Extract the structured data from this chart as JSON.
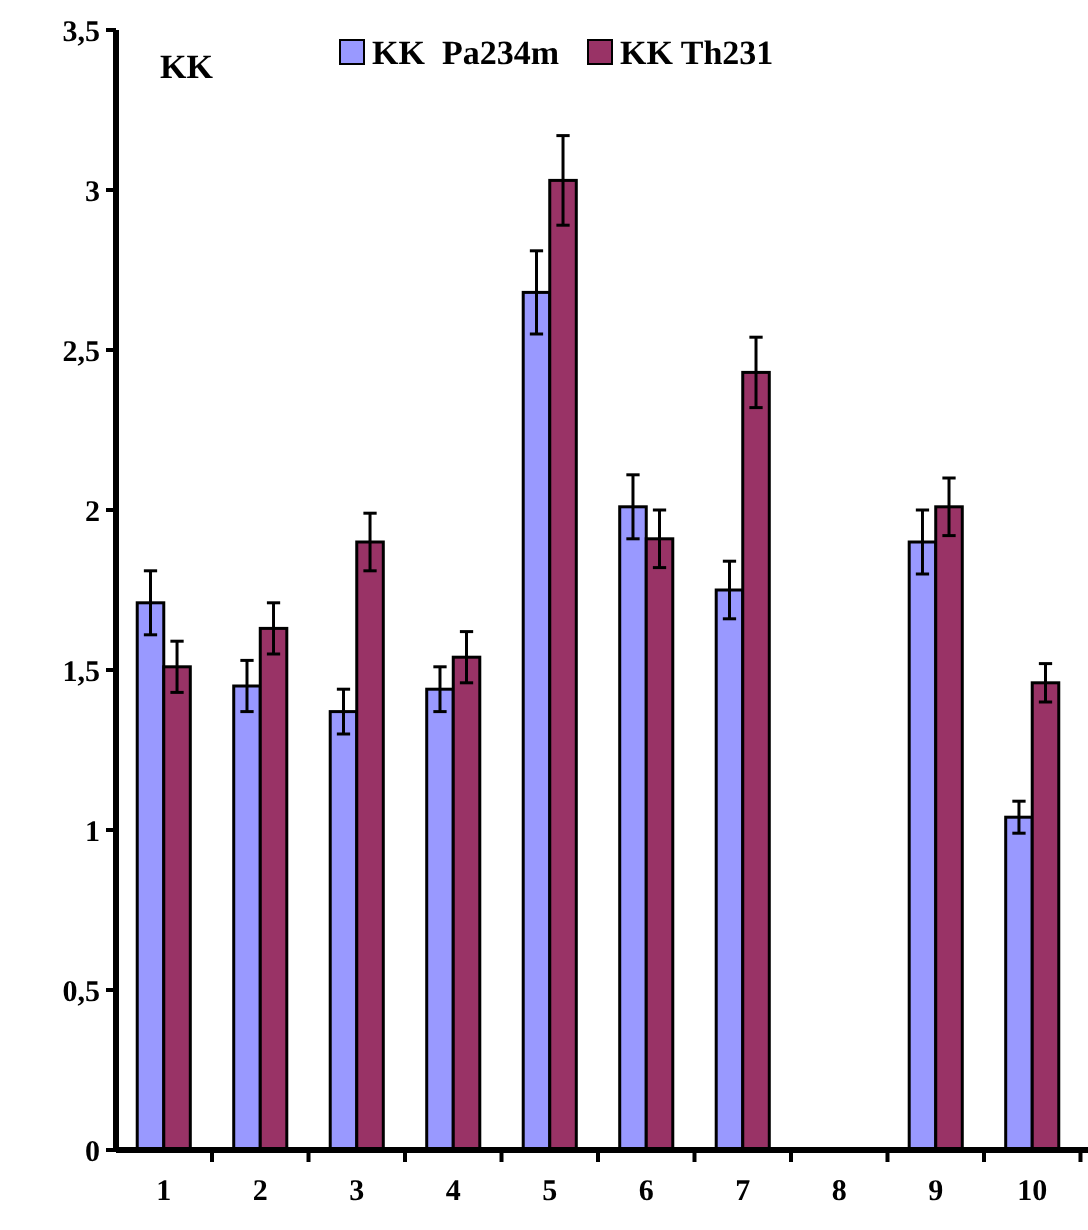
{
  "chart_data": {
    "type": "bar",
    "annotations": [
      "KK"
    ],
    "categories": [
      "1",
      "2",
      "3",
      "4",
      "5",
      "6",
      "7",
      "8",
      "9",
      "10"
    ],
    "series": [
      {
        "name": "KK  Pa234m",
        "color": "#9999ff",
        "values": [
          1.71,
          1.45,
          1.37,
          1.44,
          2.68,
          2.01,
          1.75,
          null,
          1.9,
          1.04
        ],
        "errors": [
          0.1,
          0.08,
          0.07,
          0.07,
          0.13,
          0.1,
          0.09,
          null,
          0.1,
          0.05
        ]
      },
      {
        "name": "KK Th231",
        "color": "#993366",
        "values": [
          1.51,
          1.63,
          1.9,
          1.54,
          3.03,
          1.91,
          2.43,
          null,
          2.01,
          1.46
        ],
        "errors": [
          0.08,
          0.08,
          0.09,
          0.08,
          0.14,
          0.09,
          0.11,
          null,
          0.09,
          0.06
        ]
      }
    ],
    "ylim": [
      0,
      3.5
    ],
    "yticks": [
      0,
      {
        "value": 0.5,
        "label": "0,5"
      },
      1,
      {
        "value": 1.5,
        "label": "1,5"
      },
      2,
      {
        "value": 2.5,
        "label": "2,5"
      },
      3,
      {
        "value": 3.5,
        "label": "3,5"
      }
    ],
    "grid": false,
    "legend": "top"
  }
}
